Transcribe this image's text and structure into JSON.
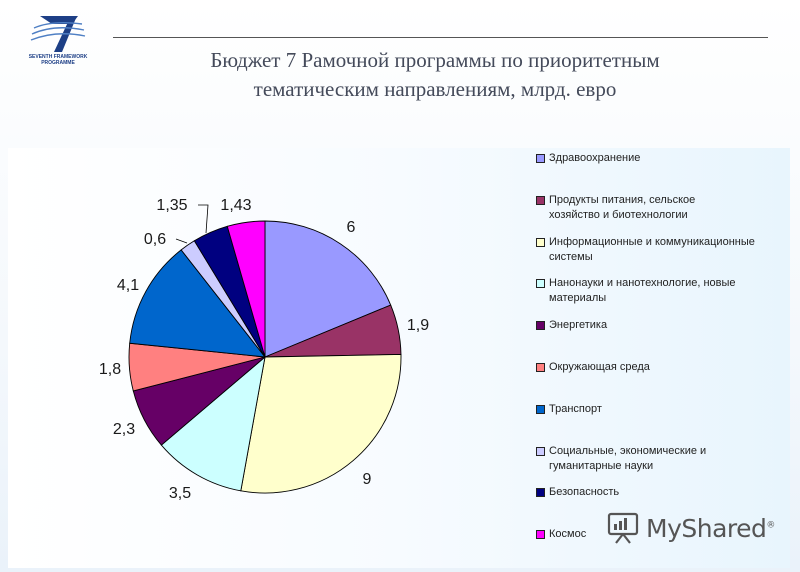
{
  "logo": {
    "line1": "SEVENTH FRAMEWORK",
    "line2": "PROGRAMME",
    "icon": "seven-logo-icon"
  },
  "title": {
    "line1": "Бюджет 7 Рамочной программы по приоритетным",
    "line2": "тематическим направлениям, млрд. евро"
  },
  "chart_data": {
    "type": "pie",
    "title": "Бюджет 7 Рамочной программы по приоритетным тематическим направлениям, млрд. евро",
    "start_angle_deg": 0,
    "direction": "clockwise",
    "legend_position": "right",
    "slices": [
      {
        "label": "Здравоохранение",
        "value": 6,
        "display": "6",
        "color": "#9999ff"
      },
      {
        "label": "Продукты питания, сельское хозяйство и биотехнологии",
        "value": 1.9,
        "display": "1,9",
        "color": "#993366"
      },
      {
        "label": "Информационные и коммуникационные системы",
        "value": 9,
        "display": "9",
        "color": "#ffffcc"
      },
      {
        "label": "Нанонауки и нанотехнологие, новые материалы",
        "value": 3.5,
        "display": "3,5",
        "color": "#ccffff"
      },
      {
        "label": "Энергетика",
        "value": 2.3,
        "display": "2,3",
        "color": "#660066"
      },
      {
        "label": "Окружающая среда",
        "value": 1.8,
        "display": "1,8",
        "color": "#ff8080"
      },
      {
        "label": "Транспорт",
        "value": 4.1,
        "display": "4,1",
        "color": "#0066cc"
      },
      {
        "label": "Социальные, экономические и гуманитарные науки",
        "value": 0.6,
        "display": "0,6",
        "color": "#ccccff"
      },
      {
        "label": "Безопасность",
        "value": 1.35,
        "display": "1,35",
        "color": "#000080"
      },
      {
        "label": "Космос",
        "value": 1.43,
        "display": "1,43",
        "color": "#ff00ff"
      }
    ]
  },
  "legend": {
    "items": [
      {
        "lines": [
          "Здравоохранение"
        ]
      },
      {
        "lines": [
          "Продукты питания, сельское",
          "хозяйство и биотехнологии"
        ]
      },
      {
        "lines": [
          "Информационные и коммуникационные",
          "системы"
        ]
      },
      {
        "lines": [
          "Нанонауки и нанотехнологие, новые",
          "материалы"
        ]
      },
      {
        "lines": [
          "Энергетика"
        ]
      },
      {
        "lines": [
          "Окружающая среда"
        ]
      },
      {
        "lines": [
          "Транспорт"
        ]
      },
      {
        "lines": [
          "Социальные, экономические и",
          "гуманитарные науки"
        ]
      },
      {
        "lines": [
          "Безопасность"
        ]
      },
      {
        "lines": [
          "Космос"
        ]
      }
    ]
  },
  "watermark": {
    "text": "MyShared",
    "reg": "®",
    "icon": "presentation-board-icon"
  }
}
